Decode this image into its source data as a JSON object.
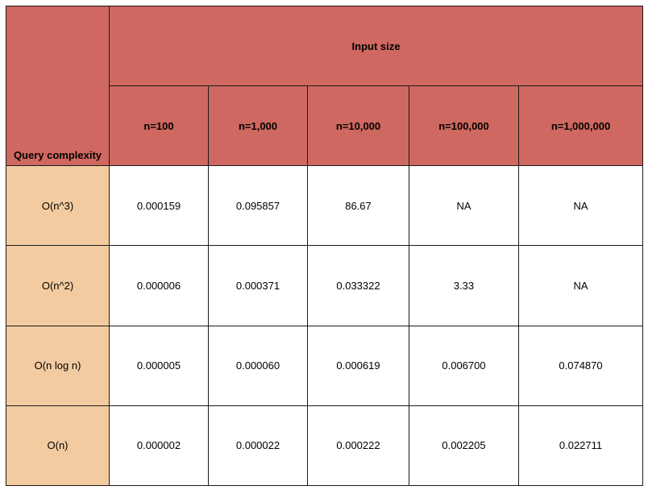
{
  "table": {
    "corner_label": "Query complexity",
    "group_header": "Input size",
    "columns": [
      "n=100",
      "n=1,000",
      "n=10,000",
      "n=100,000",
      "n=1,000,000"
    ],
    "rows": [
      {
        "label": "O(n^3)",
        "values": [
          "0.000159",
          "0.095857",
          "86.67",
          "NA",
          "NA"
        ]
      },
      {
        "label": "O(n^2)",
        "values": [
          "0.000006",
          "0.000371",
          "0.033322",
          "3.33",
          "NA"
        ]
      },
      {
        "label": "O(n log n)",
        "values": [
          "0.000005",
          "0.000060",
          "0.000619",
          "0.006700",
          "0.074870"
        ]
      },
      {
        "label": "O(n)",
        "values": [
          "0.000002",
          "0.000022",
          "0.000222",
          "0.002205",
          "0.022711"
        ]
      }
    ],
    "colors": {
      "header_bg": "#cf6860",
      "row_header_bg": "#f2cba0",
      "cell_bg": "#ffffff",
      "border": "#1a1a1a"
    }
  }
}
